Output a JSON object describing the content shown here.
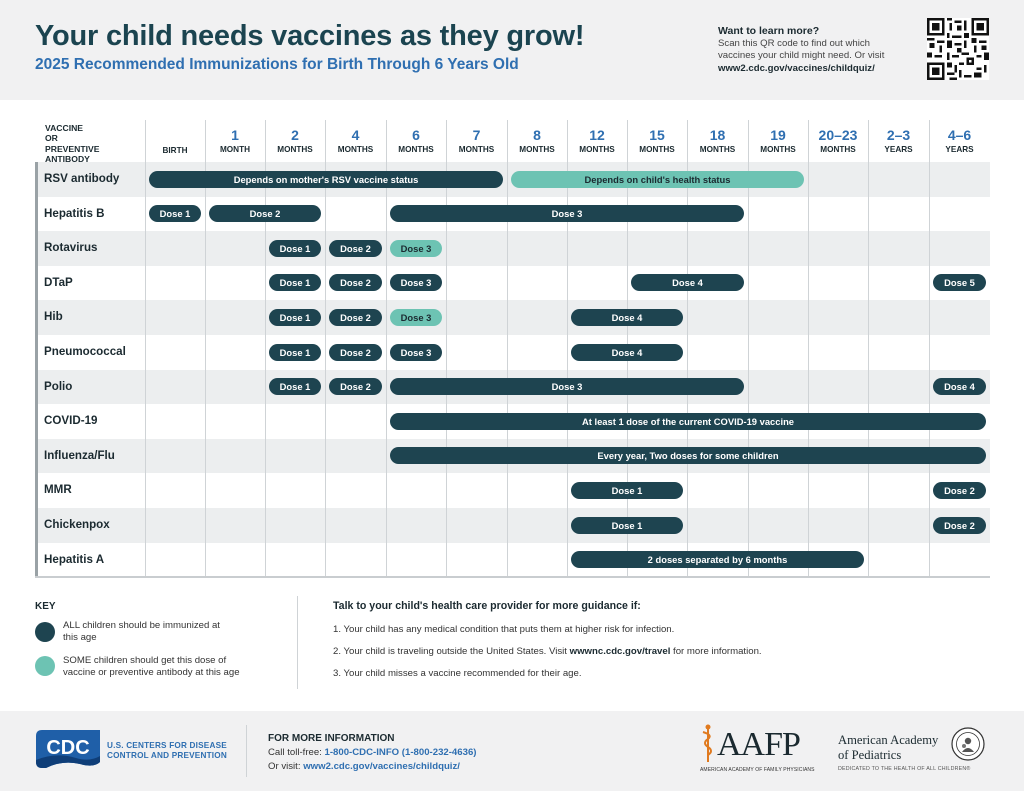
{
  "header": {
    "title": "Your child needs vaccines as they grow!",
    "subtitle": "2025 Recommended Immunizations for Birth Through 6 Years Old",
    "learn_heading": "Want to learn more?",
    "learn_body_1": "Scan this QR code to find out which",
    "learn_body_2": "vaccines your child might need. Or visit",
    "learn_url": "www2.cdc.gov/vaccines/childquiz/"
  },
  "table": {
    "vaccine_header": [
      "VACCINE",
      "OR PREVENTIVE",
      "ANTIBODY"
    ],
    "ages": [
      {
        "n": "",
        "u": "BIRTH"
      },
      {
        "n": "1",
        "u": "MONTH"
      },
      {
        "n": "2",
        "u": "MONTHS"
      },
      {
        "n": "4",
        "u": "MONTHS"
      },
      {
        "n": "6",
        "u": "MONTHS"
      },
      {
        "n": "7",
        "u": "MONTHS"
      },
      {
        "n": "8",
        "u": "MONTHS"
      },
      {
        "n": "12",
        "u": "MONTHS"
      },
      {
        "n": "15",
        "u": "MONTHS"
      },
      {
        "n": "18",
        "u": "MONTHS"
      },
      {
        "n": "19",
        "u": "MONTHS"
      },
      {
        "n": "20–23",
        "u": "MONTHS"
      },
      {
        "n": "2–3",
        "u": "YEARS"
      },
      {
        "n": "4–6",
        "u": "YEARS"
      }
    ],
    "rows": [
      {
        "name": "RSV antibody",
        "bars": [
          {
            "label": "Depends on mother's RSV vaccine status",
            "start": 0,
            "end": 5,
            "type": "all"
          },
          {
            "label": "Depends on child's health status",
            "start": 6,
            "end": 10,
            "type": "some"
          }
        ]
      },
      {
        "name": "Hepatitis B",
        "bars": [
          {
            "label": "Dose 1",
            "start": 0,
            "end": 0,
            "type": "all"
          },
          {
            "label": "Dose 2",
            "start": 1,
            "end": 2,
            "type": "all"
          },
          {
            "label": "Dose 3",
            "start": 4,
            "end": 9,
            "type": "all"
          }
        ]
      },
      {
        "name": "Rotavirus",
        "bars": [
          {
            "label": "Dose 1",
            "start": 2,
            "end": 2,
            "type": "all"
          },
          {
            "label": "Dose 2",
            "start": 3,
            "end": 3,
            "type": "all"
          },
          {
            "label": "Dose 3",
            "start": 4,
            "end": 4,
            "type": "some"
          }
        ]
      },
      {
        "name": "DTaP",
        "bars": [
          {
            "label": "Dose 1",
            "start": 2,
            "end": 2,
            "type": "all"
          },
          {
            "label": "Dose 2",
            "start": 3,
            "end": 3,
            "type": "all"
          },
          {
            "label": "Dose 3",
            "start": 4,
            "end": 4,
            "type": "all"
          },
          {
            "label": "Dose 4",
            "start": 8,
            "end": 9,
            "type": "all"
          },
          {
            "label": "Dose 5",
            "start": 13,
            "end": 13,
            "type": "all"
          }
        ]
      },
      {
        "name": "Hib",
        "bars": [
          {
            "label": "Dose 1",
            "start": 2,
            "end": 2,
            "type": "all"
          },
          {
            "label": "Dose 2",
            "start": 3,
            "end": 3,
            "type": "all"
          },
          {
            "label": "Dose 3",
            "start": 4,
            "end": 4,
            "type": "some"
          },
          {
            "label": "Dose 4",
            "start": 7,
            "end": 8,
            "type": "all"
          }
        ]
      },
      {
        "name": "Pneumococcal",
        "bars": [
          {
            "label": "Dose 1",
            "start": 2,
            "end": 2,
            "type": "all"
          },
          {
            "label": "Dose 2",
            "start": 3,
            "end": 3,
            "type": "all"
          },
          {
            "label": "Dose 3",
            "start": 4,
            "end": 4,
            "type": "all"
          },
          {
            "label": "Dose 4",
            "start": 7,
            "end": 8,
            "type": "all"
          }
        ]
      },
      {
        "name": "Polio",
        "bars": [
          {
            "label": "Dose 1",
            "start": 2,
            "end": 2,
            "type": "all"
          },
          {
            "label": "Dose 2",
            "start": 3,
            "end": 3,
            "type": "all"
          },
          {
            "label": "Dose 3",
            "start": 4,
            "end": 9,
            "type": "all"
          },
          {
            "label": "Dose 4",
            "start": 13,
            "end": 13,
            "type": "all"
          }
        ]
      },
      {
        "name": "COVID-19",
        "bars": [
          {
            "label": "At least 1 dose of the current COVID-19 vaccine",
            "start": 4,
            "end": 13,
            "type": "all"
          }
        ]
      },
      {
        "name": "Influenza/Flu",
        "bars": [
          {
            "label": "Every year, Two doses for some children",
            "start": 4,
            "end": 13,
            "type": "all"
          }
        ]
      },
      {
        "name": "MMR",
        "bars": [
          {
            "label": "Dose 1",
            "start": 7,
            "end": 8,
            "type": "all"
          },
          {
            "label": "Dose 2",
            "start": 13,
            "end": 13,
            "type": "all"
          }
        ]
      },
      {
        "name": "Chickenpox",
        "bars": [
          {
            "label": "Dose 1",
            "start": 7,
            "end": 8,
            "type": "all"
          },
          {
            "label": "Dose 2",
            "start": 13,
            "end": 13,
            "type": "all"
          }
        ]
      },
      {
        "name": "Hepatitis A",
        "bars": [
          {
            "label": "2 doses separated by 6 months",
            "start": 7,
            "end": 11,
            "type": "all"
          }
        ]
      }
    ]
  },
  "key": {
    "title": "KEY",
    "all": {
      "line1": "ALL children should be immunized at",
      "line2": "this age",
      "color": "#1e4450"
    },
    "some": {
      "line1": "SOME children should get this dose of",
      "line2": "vaccine or preventive antibody at this age",
      "color": "#6dc3b3"
    }
  },
  "guidance": {
    "title": "Talk to your child's health care provider for more guidance if:",
    "item1": "1. Your child has any medical condition that puts them at higher risk for infection.",
    "item2_pre": "2. Your child is traveling outside the United States. Visit ",
    "item2_link": "wwwnc.cdc.gov/travel",
    "item2_post": " for more information.",
    "item3": "3. Your child misses a vaccine recommended for their age."
  },
  "footer": {
    "cdc_logo_text": "CDC",
    "cdc_name_1": "U.S. CENTERS FOR DISEASE",
    "cdc_name_2": "CONTROL AND PREVENTION",
    "info_title": "FOR MORE INFORMATION",
    "call_pre": "Call toll-free: ",
    "call_num": "1-800-CDC-INFO (1-800-232-4636)",
    "visit_pre": "Or visit: ",
    "visit_url": "www2.cdc.gov/vaccines/childquiz/",
    "aafp_text": "AAFP",
    "aafp_sub": "AMERICAN ACADEMY OF FAMILY PHYSICIANS",
    "aap_name_1": "American Academy",
    "aap_name_2": "of Pediatrics",
    "aap_sub": "DEDICATED TO THE HEALTH OF ALL CHILDREN®"
  },
  "colors": {
    "all": "#1e4450",
    "some": "#6dc3b3",
    "accent_blue": "#2f6fb1"
  }
}
